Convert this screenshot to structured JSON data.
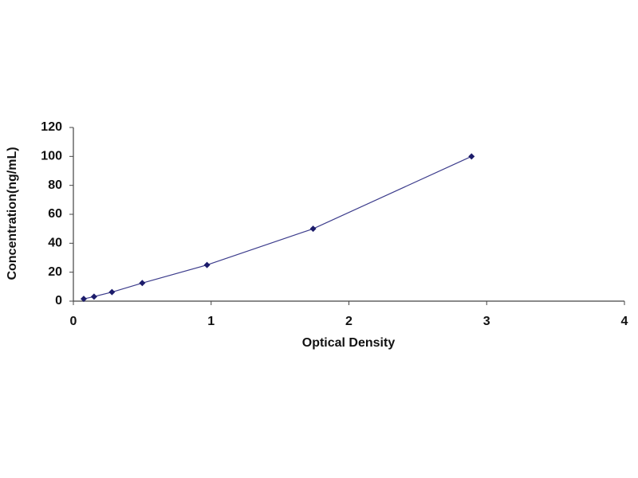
{
  "chart_data": {
    "type": "scatter",
    "x_label": "Optical Density",
    "y_label": "Concentration(ng/mL)",
    "x": [
      0.075,
      0.15,
      0.28,
      0.5,
      0.97,
      1.74,
      2.89
    ],
    "values": [
      1.56,
      3.12,
      6.25,
      12.5,
      25,
      50,
      100
    ],
    "color": "#1c1c6b",
    "line_color": "#3c3c8c",
    "xlim": [
      0,
      4
    ],
    "xticks": [
      0,
      1,
      2,
      3,
      4
    ],
    "ylim": [
      0,
      120
    ],
    "yticks": [
      0,
      20,
      40,
      60,
      80,
      100,
      120
    ]
  }
}
